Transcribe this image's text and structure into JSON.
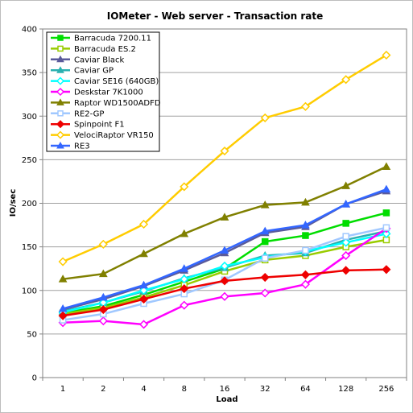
{
  "chart_data": {
    "type": "line",
    "title": "IOMeter - Web server - Transaction rate",
    "xlabel": "Load",
    "ylabel": "IO/sec",
    "categories": [
      "1",
      "2",
      "4",
      "8",
      "16",
      "32",
      "64",
      "128",
      "256"
    ],
    "ylim": [
      0,
      400
    ],
    "yticks": [
      0,
      50,
      100,
      150,
      200,
      250,
      300,
      350,
      400
    ],
    "grid": true,
    "legend_position": "top-left",
    "series": [
      {
        "name": "Barracuda 7200.11",
        "color": "#00dd00",
        "marker": "square-filled",
        "values": [
          74,
          82,
          95,
          110,
          125,
          156,
          163,
          177,
          189
        ]
      },
      {
        "name": "Barracuda ES.2",
        "color": "#99cc00",
        "marker": "square-open",
        "values": [
          73,
          80,
          92,
          106,
          122,
          135,
          140,
          150,
          158
        ]
      },
      {
        "name": "Caviar Black",
        "color": "#5a5a9a",
        "marker": "triangle",
        "values": [
          78,
          90,
          105,
          123,
          143,
          166,
          173,
          199,
          214
        ]
      },
      {
        "name": "Caviar GP",
        "color": "#2ab0b0",
        "marker": "triangle",
        "values": [
          76,
          86,
          99,
          114,
          126,
          140,
          143,
          158,
          168
        ]
      },
      {
        "name": "Caviar SE16 (640GB)",
        "color": "#00ffff",
        "marker": "diamond-open",
        "values": [
          75,
          86,
          100,
          113,
          128,
          138,
          145,
          155,
          165
        ]
      },
      {
        "name": "Deskstar 7K1000",
        "color": "#ff00ff",
        "marker": "diamond-open",
        "values": [
          63,
          65,
          61,
          83,
          93,
          97,
          107,
          140,
          171
        ]
      },
      {
        "name": "Raptor WD1500ADFD",
        "color": "#808000",
        "marker": "triangle",
        "values": [
          113,
          119,
          142,
          165,
          184,
          198,
          201,
          220,
          242
        ]
      },
      {
        "name": "RE2-GP",
        "color": "#a0c8ff",
        "marker": "square-open",
        "values": [
          66,
          73,
          85,
          96,
          112,
          137,
          146,
          162,
          172
        ]
      },
      {
        "name": "Spinpoint F1",
        "color": "#ee0000",
        "marker": "diamond-filled",
        "values": [
          71,
          78,
          90,
          102,
          111,
          115,
          118,
          123,
          124
        ]
      },
      {
        "name": "VelociRaptor VR150",
        "color": "#ffcc00",
        "marker": "diamond-open",
        "values": [
          133,
          153,
          176,
          219,
          260,
          298,
          311,
          342,
          370
        ]
      },
      {
        "name": "RE3",
        "color": "#3366ff",
        "marker": "triangle",
        "values": [
          79,
          92,
          106,
          125,
          146,
          168,
          175,
          199,
          216
        ]
      }
    ]
  }
}
